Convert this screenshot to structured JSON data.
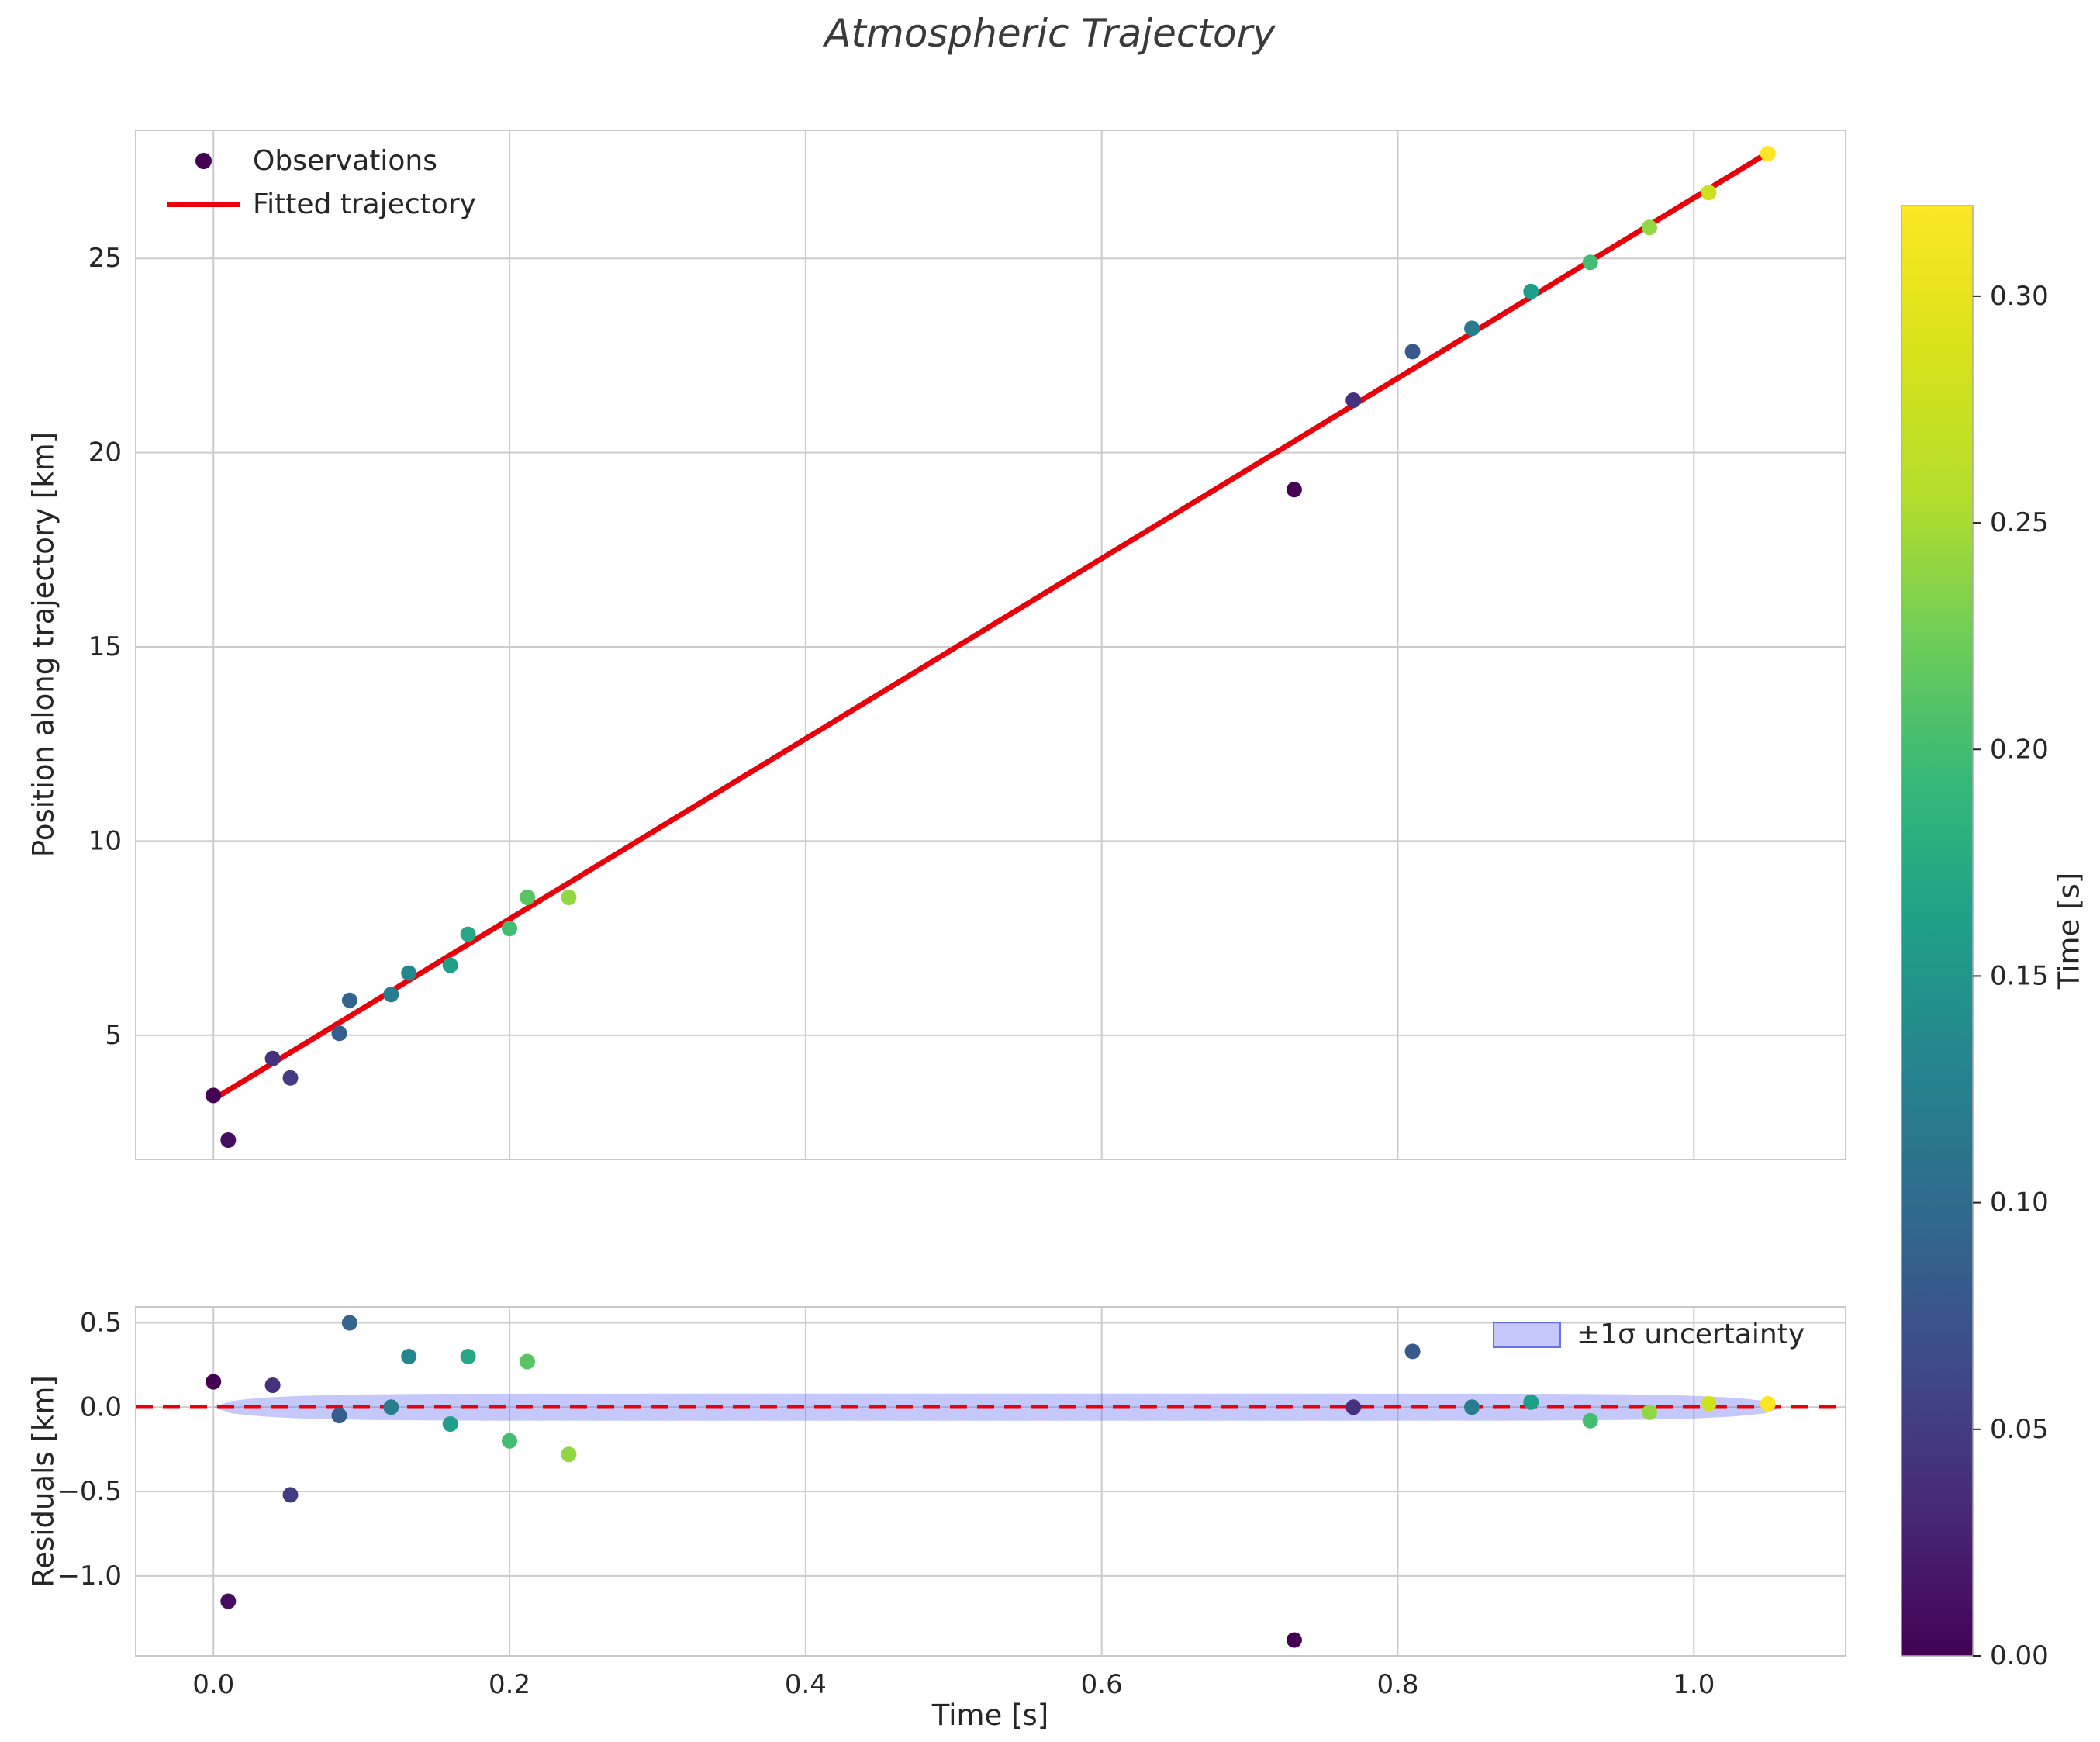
{
  "title": "Atmospheric Trajectory",
  "colors": {
    "fit_line": "#e8000b",
    "zero_line": "#e8000b",
    "band_fill": "rgba(100,110,245,0.38)",
    "band_edge": "rgba(90,100,235,0.85)",
    "grid": "#cccccc",
    "spine": "#c8c8c8",
    "text": "#262626",
    "legend_marker": "#440154",
    "background": "#ffffff"
  },
  "main_plot": {
    "ylabel": "Position along trajectory [km]",
    "ytick_labels": [
      "5",
      "10",
      "15",
      "20",
      "25"
    ],
    "ytick_values": [
      5,
      10,
      15,
      20,
      25
    ],
    "ylim": [
      1.8,
      28.3
    ],
    "xlim": [
      -0.0525,
      1.1025
    ],
    "legend": {
      "observations": "Observations",
      "fit": "Fitted trajectory"
    }
  },
  "residual_plot": {
    "ylabel": "Residuals [km]",
    "xlabel": "Time [s]",
    "ytick_labels": [
      "0.5",
      "0.0",
      "−0.5",
      "−1.0"
    ],
    "ytick_values": [
      0.5,
      0.0,
      -0.5,
      -1.0
    ],
    "xtick_labels": [
      "0.0",
      "0.2",
      "0.4",
      "0.6",
      "0.8",
      "1.0"
    ],
    "xtick_values": [
      0.0,
      0.2,
      0.4,
      0.6,
      0.8,
      1.0
    ],
    "ylim": [
      -1.474,
      0.594
    ],
    "legend": {
      "band": "±1σ uncertainty"
    }
  },
  "colorbar": {
    "label": "Time [s]",
    "tick_labels": [
      "0.00",
      "0.05",
      "0.10",
      "0.15",
      "0.20",
      "0.25",
      "0.30"
    ],
    "tick_values": [
      0.0,
      0.05,
      0.1,
      0.15,
      0.2,
      0.25,
      0.3
    ],
    "vmin": 0.0,
    "vmax": 0.32,
    "colormap": "viridis"
  },
  "chart_data": {
    "type": "scatter",
    "title": "Atmospheric Trajectory",
    "xlabel": "Time [s]",
    "ylabel_main": "Position along trajectory [km]",
    "ylabel_residual": "Residuals [km]",
    "colorbar_label": "Time [s]",
    "legend_entries": [
      "Observations",
      "Fitted trajectory",
      "±1σ uncertainty"
    ],
    "points": [
      {
        "t": 0.0,
        "position_km": 3.45,
        "residual_km": 0.15,
        "color_time_s": 0.0
      },
      {
        "t": 0.01,
        "position_km": 2.3,
        "residual_km": -1.15,
        "color_time_s": 0.01
      },
      {
        "t": 0.04,
        "position_km": 4.4,
        "residual_km": 0.13,
        "color_time_s": 0.04
      },
      {
        "t": 0.052,
        "position_km": 3.9,
        "residual_km": -0.52,
        "color_time_s": 0.052
      },
      {
        "t": 0.085,
        "position_km": 5.05,
        "residual_km": -0.05,
        "color_time_s": 0.085
      },
      {
        "t": 0.092,
        "position_km": 5.9,
        "residual_km": 0.5,
        "color_time_s": 0.092
      },
      {
        "t": 0.12,
        "position_km": 6.05,
        "residual_km": 0.0,
        "color_time_s": 0.12
      },
      {
        "t": 0.132,
        "position_km": 6.6,
        "residual_km": 0.3,
        "color_time_s": 0.132
      },
      {
        "t": 0.16,
        "position_km": 6.8,
        "residual_km": -0.1,
        "color_time_s": 0.16
      },
      {
        "t": 0.172,
        "position_km": 7.6,
        "residual_km": 0.3,
        "color_time_s": 0.172
      },
      {
        "t": 0.2,
        "position_km": 7.75,
        "residual_km": -0.2,
        "color_time_s": 0.2
      },
      {
        "t": 0.212,
        "position_km": 8.55,
        "residual_km": 0.27,
        "color_time_s": 0.212
      },
      {
        "t": 0.24,
        "position_km": 8.55,
        "residual_km": -0.28,
        "color_time_s": 0.24
      },
      {
        "t": 0.73,
        "position_km": 19.05,
        "residual_km": -1.38,
        "color_time_s": 0.0
      },
      {
        "t": 0.77,
        "position_km": 21.35,
        "residual_km": 0.0,
        "color_time_s": 0.04
      },
      {
        "t": 0.81,
        "position_km": 22.6,
        "residual_km": 0.33,
        "color_time_s": 0.08
      },
      {
        "t": 0.85,
        "position_km": 23.2,
        "residual_km": 0.0,
        "color_time_s": 0.12
      },
      {
        "t": 0.89,
        "position_km": 24.15,
        "residual_km": 0.03,
        "color_time_s": 0.16
      },
      {
        "t": 0.93,
        "position_km": 24.9,
        "residual_km": -0.08,
        "color_time_s": 0.2
      },
      {
        "t": 0.97,
        "position_km": 25.8,
        "residual_km": -0.03,
        "color_time_s": 0.24
      },
      {
        "t": 1.01,
        "position_km": 26.7,
        "residual_km": 0.02,
        "color_time_s": 0.28
      },
      {
        "t": 1.05,
        "position_km": 27.7,
        "residual_km": 0.02,
        "color_time_s": 0.32
      }
    ],
    "fitted_line": {
      "label": "Fitted trajectory",
      "x_start": 0.0,
      "x_end": 1.05,
      "y_start_km": 3.35,
      "y_end_km": 27.72,
      "slope_km_per_s": 23.2,
      "intercept_km": 3.35
    },
    "residual_band": {
      "label": "±1σ uncertainty",
      "center_km": 0.0,
      "halfwidth_km": 0.08,
      "x_min": 0.0,
      "x_max": 1.06,
      "shape_exponent": 10
    },
    "zero_line": {
      "y": 0.0,
      "style": "dashed"
    }
  }
}
